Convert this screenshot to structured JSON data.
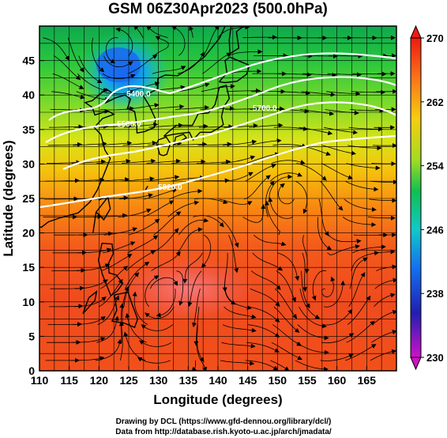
{
  "title": "GSM 06Z30Apr2023 (500.0hPa)",
  "map": {
    "xlabel": "Longitude (degrees)",
    "ylabel": "Latitude  (degrees)",
    "lon_range": [
      110,
      170
    ],
    "lat_range": [
      0,
      50
    ],
    "lon_ticks": [
      "110",
      "115",
      "120",
      "125",
      "130",
      "135",
      "140",
      "145",
      "150",
      "155",
      "160",
      "165"
    ],
    "lat_ticks": [
      "0",
      "5",
      "10",
      "15",
      "20",
      "25",
      "30",
      "35",
      "40",
      "45"
    ],
    "contour_labels": [
      "5400.0",
      "5580.0",
      "5700.0",
      "5820.0"
    ]
  },
  "colorbar": {
    "range": [
      230,
      270
    ],
    "labels": [
      "270",
      "262",
      "254",
      "246",
      "238",
      "230"
    ]
  },
  "credits": {
    "line1": "Drawing by DCL (https://www.gfd-dennou.org/library/dcl/)",
    "line2": "Data from http://database.rish.kyoto-u.ac.jp/arch/jmadata/"
  }
}
